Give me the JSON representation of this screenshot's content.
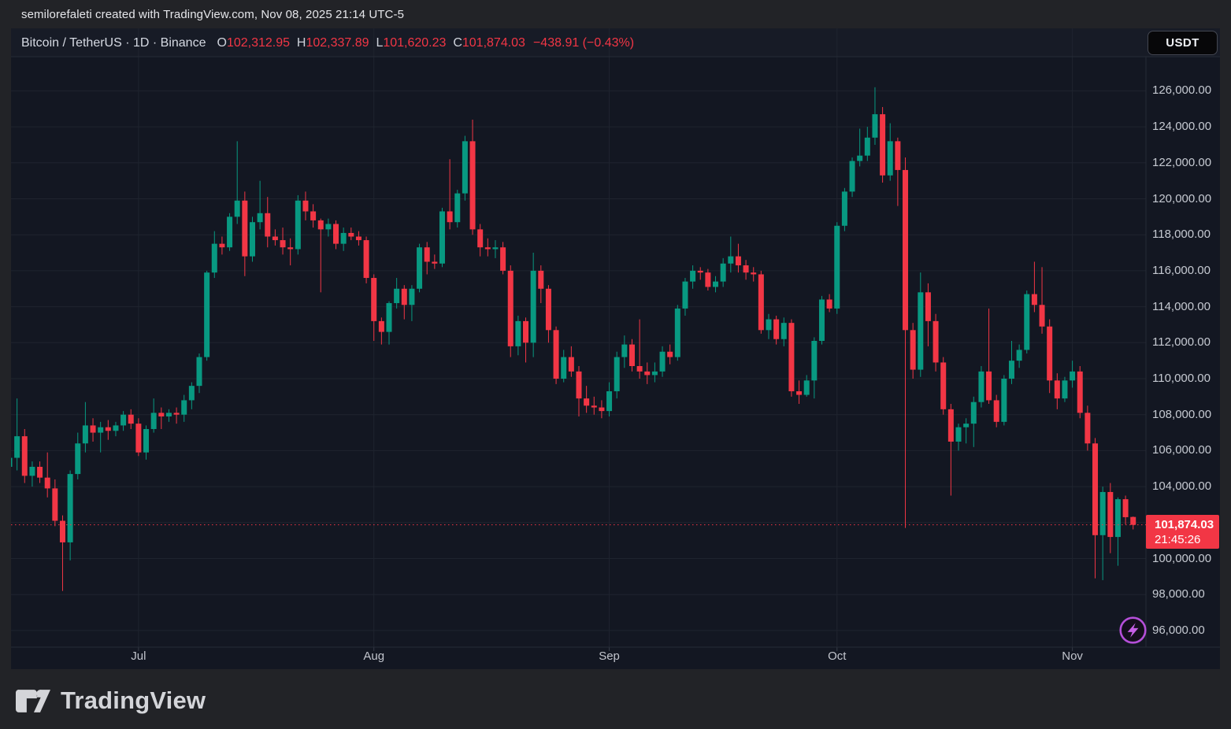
{
  "attribution": {
    "text": "semilorefaleti created with TradingView.com, Nov 08, 2025 21:14 UTC-5"
  },
  "header": {
    "symbol": "Bitcoin / TetherUS",
    "interval": "1D",
    "exchange": "Binance",
    "title": "Bitcoin / TetherUS · 1D · Binance",
    "ohlc": {
      "o_label": "O",
      "o": "102,312.95",
      "h_label": "H",
      "h": "102,337.89",
      "l_label": "L",
      "l": "101,620.23",
      "c_label": "C",
      "c": "101,874.03",
      "change": "−438.91 (−0.43%)"
    },
    "currency_button": "USDT"
  },
  "price_scale": {
    "ticks": [
      {
        "v": 126000,
        "label": "126,000.00"
      },
      {
        "v": 124000,
        "label": "124,000.00"
      },
      {
        "v": 122000,
        "label": "122,000.00"
      },
      {
        "v": 120000,
        "label": "120,000.00"
      },
      {
        "v": 118000,
        "label": "118,000.00"
      },
      {
        "v": 116000,
        "label": "116,000.00"
      },
      {
        "v": 114000,
        "label": "114,000.00"
      },
      {
        "v": 112000,
        "label": "112,000.00"
      },
      {
        "v": 110000,
        "label": "110,000.00"
      },
      {
        "v": 108000,
        "label": "108,000.00"
      },
      {
        "v": 106000,
        "label": "106,000.00"
      },
      {
        "v": 104000,
        "label": "104,000.00"
      },
      {
        "v": 100000,
        "label": "100,000.00"
      },
      {
        "v": 98000,
        "label": "98,000.00"
      },
      {
        "v": 96000,
        "label": "96,000.00"
      }
    ],
    "last": {
      "price_label": "101,874.03",
      "countdown": "21:45:26"
    }
  },
  "time_scale": {
    "ticks": [
      {
        "label": "Jul",
        "index": 17
      },
      {
        "label": "Aug",
        "index": 48
      },
      {
        "label": "Sep",
        "index": 79
      },
      {
        "label": "Oct",
        "index": 109
      },
      {
        "label": "Nov",
        "index": 140
      }
    ]
  },
  "footer": {
    "logo_text": "TradingView"
  },
  "colors": {
    "up": "#089981",
    "down": "#f23645",
    "chart_bg": "#131722",
    "header_bg": "#171b26",
    "grid": "#1f242f",
    "divider": "#262b36",
    "last_price_line": "#f23645",
    "boost_purple": "#b44fd8"
  },
  "chart_data": {
    "type": "candlestick",
    "symbol": "BTCUSDT",
    "interval": "1D",
    "last_price": 101874.03,
    "y_axis": {
      "tick_min": 96000,
      "tick_max": 126000,
      "tick_step": 2000,
      "view_min": 95075,
      "view_max": 127900
    },
    "x_axis": {
      "month_tick_labels": [
        "Jul",
        "Aug",
        "Sep",
        "Oct",
        "Nov"
      ],
      "month_start_indices": [
        17,
        48,
        79,
        109,
        140
      ]
    },
    "candles": [
      [
        105100,
        106000,
        104400,
        105600
      ],
      [
        105600,
        108900,
        104900,
        106800
      ],
      [
        106800,
        107200,
        104200,
        104600
      ],
      [
        104600,
        105400,
        104000,
        105100
      ],
      [
        105100,
        105400,
        104200,
        104500
      ],
      [
        104500,
        105900,
        103400,
        103900
      ],
      [
        103900,
        104400,
        101800,
        102100
      ],
      [
        102100,
        102400,
        98200,
        100900
      ],
      [
        100900,
        104900,
        99900,
        104700
      ],
      [
        104700,
        107000,
        104400,
        106400
      ],
      [
        106400,
        108700,
        105900,
        107400
      ],
      [
        107400,
        107800,
        106500,
        107000
      ],
      [
        107000,
        107600,
        105900,
        107300
      ],
      [
        107300,
        107700,
        106600,
        107100
      ],
      [
        107100,
        107600,
        106800,
        107400
      ],
      [
        107400,
        108200,
        107100,
        108000
      ],
      [
        108000,
        108300,
        107200,
        107500
      ],
      [
        107500,
        107800,
        105700,
        105900
      ],
      [
        105900,
        107400,
        105500,
        107200
      ],
      [
        107200,
        108900,
        107000,
        108100
      ],
      [
        108100,
        108400,
        107200,
        107900
      ],
      [
        107900,
        108300,
        107600,
        108100
      ],
      [
        108100,
        108400,
        107500,
        108000
      ],
      [
        108000,
        109100,
        107600,
        108800
      ],
      [
        108800,
        109800,
        108300,
        109600
      ],
      [
        109600,
        111400,
        109200,
        111200
      ],
      [
        111200,
        116000,
        111000,
        115900
      ],
      [
        115900,
        118200,
        115600,
        117500
      ],
      [
        117500,
        117900,
        116900,
        117300
      ],
      [
        117300,
        119200,
        117100,
        119000
      ],
      [
        119000,
        123200,
        118600,
        119900
      ],
      [
        119900,
        120400,
        115700,
        116800
      ],
      [
        116800,
        119000,
        116500,
        118700
      ],
      [
        118700,
        121000,
        118300,
        119200
      ],
      [
        119200,
        120100,
        117300,
        117900
      ],
      [
        117900,
        118300,
        117400,
        117700
      ],
      [
        117700,
        118400,
        116900,
        117300
      ],
      [
        117300,
        117800,
        116300,
        117200
      ],
      [
        117200,
        120200,
        116900,
        119900
      ],
      [
        119900,
        120400,
        118800,
        119300
      ],
      [
        119300,
        119700,
        118400,
        118800
      ],
      [
        118800,
        118900,
        114800,
        118300
      ],
      [
        118300,
        118900,
        117900,
        118600
      ],
      [
        118600,
        118800,
        117200,
        117500
      ],
      [
        117500,
        118400,
        117100,
        118100
      ],
      [
        118100,
        118400,
        117700,
        117900
      ],
      [
        117900,
        118200,
        117400,
        117700
      ],
      [
        117700,
        117900,
        115300,
        115600
      ],
      [
        115600,
        115800,
        112100,
        113200
      ],
      [
        113200,
        113400,
        111900,
        112600
      ],
      [
        112600,
        114300,
        111900,
        114200
      ],
      [
        114200,
        115600,
        113900,
        115000
      ],
      [
        115000,
        115200,
        113300,
        114100
      ],
      [
        114100,
        115200,
        113200,
        115000
      ],
      [
        115000,
        117500,
        114800,
        117300
      ],
      [
        117300,
        117600,
        115800,
        116500
      ],
      [
        116500,
        116900,
        116100,
        116400
      ],
      [
        116400,
        119500,
        116200,
        119300
      ],
      [
        119300,
        122200,
        118300,
        118700
      ],
      [
        118700,
        120500,
        118400,
        120300
      ],
      [
        120300,
        123500,
        119900,
        123200
      ],
      [
        123200,
        124400,
        118000,
        118300
      ],
      [
        118300,
        118600,
        116800,
        117300
      ],
      [
        117300,
        117800,
        116800,
        117200
      ],
      [
        117200,
        117700,
        116700,
        117300
      ],
      [
        117300,
        117600,
        115800,
        116000
      ],
      [
        116000,
        116300,
        111200,
        111800
      ],
      [
        111800,
        113500,
        111300,
        113200
      ],
      [
        113200,
        113400,
        110900,
        112000
      ],
      [
        112000,
        117000,
        111200,
        116000
      ],
      [
        116000,
        116300,
        114200,
        115000
      ],
      [
        115000,
        115200,
        112000,
        112700
      ],
      [
        112700,
        112900,
        109700,
        110000
      ],
      [
        110000,
        111600,
        109800,
        111200
      ],
      [
        111200,
        111800,
        110100,
        110400
      ],
      [
        110400,
        110700,
        107900,
        108900
      ],
      [
        108900,
        109600,
        108100,
        108500
      ],
      [
        108500,
        109000,
        108000,
        108400
      ],
      [
        108400,
        108800,
        107800,
        108200
      ],
      [
        108200,
        109800,
        107900,
        109300
      ],
      [
        109300,
        111500,
        108900,
        111200
      ],
      [
        111200,
        112400,
        110600,
        111900
      ],
      [
        111900,
        112200,
        110400,
        110700
      ],
      [
        110700,
        113300,
        110000,
        110400
      ],
      [
        110400,
        110900,
        109700,
        110200
      ],
      [
        110200,
        110900,
        109800,
        110400
      ],
      [
        110400,
        111800,
        110100,
        111500
      ],
      [
        111500,
        111900,
        110800,
        111200
      ],
      [
        111200,
        114100,
        111000,
        113900
      ],
      [
        113900,
        115600,
        113500,
        115400
      ],
      [
        115400,
        116300,
        115000,
        116000
      ],
      [
        116000,
        116200,
        115500,
        115900
      ],
      [
        115900,
        116100,
        114900,
        115100
      ],
      [
        115100,
        115700,
        114800,
        115400
      ],
      [
        115400,
        116700,
        115100,
        116400
      ],
      [
        116400,
        117900,
        115900,
        116800
      ],
      [
        116800,
        117500,
        115900,
        116300
      ],
      [
        116300,
        116600,
        115500,
        115900
      ],
      [
        115900,
        116200,
        115400,
        115800
      ],
      [
        115800,
        116000,
        112500,
        112700
      ],
      [
        112700,
        113600,
        112200,
        113300
      ],
      [
        113300,
        113500,
        111900,
        112200
      ],
      [
        112200,
        113400,
        111800,
        113100
      ],
      [
        113100,
        113300,
        109000,
        109300
      ],
      [
        109300,
        109900,
        108600,
        109100
      ],
      [
        109100,
        110200,
        109000,
        109900
      ],
      [
        109900,
        112300,
        108900,
        112100
      ],
      [
        112100,
        114600,
        111900,
        114400
      ],
      [
        114400,
        114700,
        113700,
        113900
      ],
      [
        113900,
        118700,
        113600,
        118500
      ],
      [
        118500,
        120600,
        118200,
        120400
      ],
      [
        120400,
        122300,
        120100,
        122100
      ],
      [
        122100,
        123900,
        121800,
        122400
      ],
      [
        122400,
        124000,
        122100,
        123400
      ],
      [
        123400,
        126200,
        123000,
        124700
      ],
      [
        124700,
        125100,
        120900,
        121300
      ],
      [
        121300,
        124200,
        121000,
        123200
      ],
      [
        123200,
        123400,
        119600,
        121600
      ],
      [
        121600,
        122300,
        101700,
        112700
      ],
      [
        112700,
        113100,
        110000,
        110500
      ],
      [
        110500,
        115900,
        110100,
        114800
      ],
      [
        114800,
        115300,
        111800,
        113200
      ],
      [
        113200,
        113600,
        110400,
        110900
      ],
      [
        110900,
        111200,
        108000,
        108300
      ],
      [
        108300,
        108600,
        103500,
        106500
      ],
      [
        106500,
        107500,
        106000,
        107300
      ],
      [
        107300,
        107800,
        106400,
        107500
      ],
      [
        107500,
        109000,
        106200,
        108700
      ],
      [
        108700,
        110700,
        108400,
        110400
      ],
      [
        110400,
        113900,
        108600,
        108800
      ],
      [
        108800,
        109100,
        107300,
        107600
      ],
      [
        107600,
        110200,
        107400,
        110000
      ],
      [
        110000,
        112100,
        109700,
        111000
      ],
      [
        111000,
        111900,
        110600,
        111600
      ],
      [
        111600,
        114900,
        111400,
        114700
      ],
      [
        114700,
        116500,
        113700,
        114100
      ],
      [
        114100,
        116200,
        112500,
        112900
      ],
      [
        112900,
        113300,
        109200,
        109900
      ],
      [
        109900,
        110300,
        108300,
        108900
      ],
      [
        108900,
        110100,
        108700,
        109900
      ],
      [
        109900,
        111000,
        109500,
        110400
      ],
      [
        110400,
        110700,
        107800,
        108100
      ],
      [
        108100,
        108500,
        106000,
        106400
      ],
      [
        106400,
        106700,
        98900,
        101300
      ],
      [
        101300,
        104000,
        98800,
        103700
      ],
      [
        103700,
        104200,
        100300,
        101200
      ],
      [
        101200,
        103400,
        99600,
        103300
      ],
      [
        103300,
        103500,
        101900,
        102300
      ],
      [
        102312.95,
        102337.89,
        101620.23,
        101874.03
      ]
    ]
  }
}
